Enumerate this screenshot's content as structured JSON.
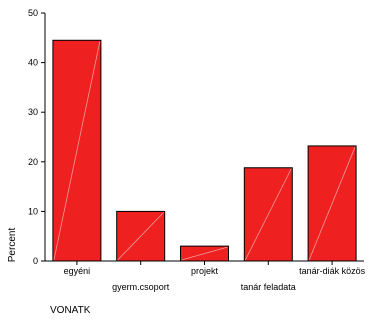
{
  "chart_data": {
    "type": "bar",
    "xlabel": "VONATK",
    "ylabel": "Percent",
    "categories": [
      "egyéni",
      "gyerm.csoport",
      "projekt",
      "tanár feladata",
      "tanár-diák közös"
    ],
    "values": [
      44.5,
      10.0,
      3.0,
      18.8,
      23.2
    ],
    "ylim": [
      0,
      50
    ],
    "yticks": [
      0,
      10,
      20,
      30,
      40,
      50
    ],
    "grid": false,
    "legend": "none",
    "colors": {
      "bar": "#ee2020",
      "bar_outline": "#000000",
      "axis": "#000000"
    }
  }
}
